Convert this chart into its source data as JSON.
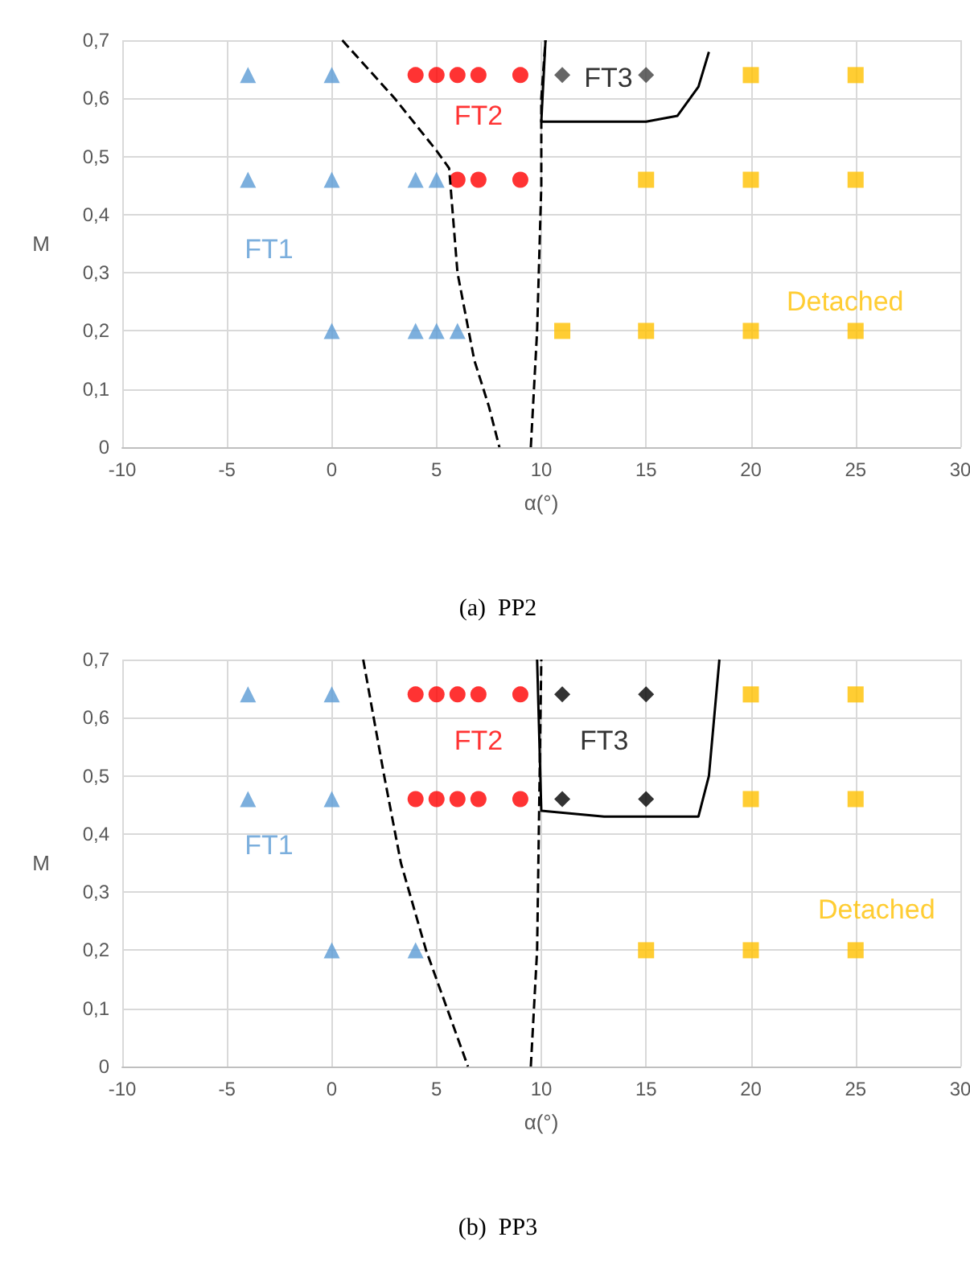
{
  "chart_data": [
    {
      "type": "scatter",
      "title": "(a)  PP2",
      "xlabel": "α(°)",
      "ylabel": "M",
      "xlim": [
        -10,
        30
      ],
      "xticks": [
        -10,
        -5,
        0,
        5,
        10,
        15,
        20,
        25,
        30
      ],
      "ylim": [
        0,
        0.7
      ],
      "yticks": [
        0,
        {
          "value": 0.1,
          "label": "0,1"
        },
        {
          "value": 0.2,
          "label": "0,2"
        },
        {
          "value": 0.3,
          "label": "0,3"
        },
        {
          "value": 0.4,
          "label": "0,4"
        },
        {
          "value": 0.5,
          "label": "0,5"
        },
        {
          "value": 0.6,
          "label": "0,6"
        },
        {
          "value": 0.7,
          "label": "0,7"
        }
      ],
      "grid": true,
      "legend": false,
      "series": [
        {
          "name": "FT1",
          "marker": "triangle",
          "color": "#5b9bd5",
          "x": [
            -4,
            0,
            -4,
            0,
            4,
            5,
            0,
            4,
            5,
            6
          ],
          "values": [
            0.64,
            0.64,
            0.46,
            0.46,
            0.46,
            0.46,
            0.2,
            0.2,
            0.2,
            0.2
          ]
        },
        {
          "name": "FT2",
          "marker": "circle",
          "color": "#ff0000",
          "x": [
            4,
            5,
            6,
            7,
            9,
            6,
            7,
            9
          ],
          "values": [
            0.64,
            0.64,
            0.64,
            0.64,
            0.64,
            0.46,
            0.46,
            0.46
          ]
        },
        {
          "name": "FT3",
          "marker": "diamond",
          "color": "#404040",
          "x": [
            11,
            15
          ],
          "values": [
            0.64,
            0.64
          ]
        },
        {
          "name": "Detached",
          "marker": "square",
          "color": "#ffc000",
          "x": [
            20,
            25,
            15,
            20,
            25,
            11,
            15,
            20,
            25
          ],
          "values": [
            0.64,
            0.64,
            0.46,
            0.46,
            0.46,
            0.2,
            0.2,
            0.2,
            0.2
          ]
        },
        {
          "type": "line",
          "marker": "none",
          "line_style": "dashed",
          "color": "#000000",
          "x": [
            0.5,
            3,
            5,
            5.6,
            6,
            6.8,
            7.5,
            8
          ],
          "values": [
            0.7,
            0.6,
            0.51,
            0.48,
            0.3,
            0.15,
            0.07,
            0
          ]
        },
        {
          "type": "line",
          "marker": "none",
          "line_style": "dashed",
          "color": "#000000",
          "x": [
            9.5,
            9.8,
            10,
            10,
            10.2
          ],
          "values": [
            0,
            0.2,
            0.45,
            0.6,
            0.7
          ]
        },
        {
          "type": "line",
          "marker": "none",
          "line_style": "solid",
          "color": "#000000",
          "x": [
            10.2,
            10,
            12,
            15,
            16.5,
            17.5,
            18
          ],
          "values": [
            0.7,
            0.56,
            0.56,
            0.56,
            0.57,
            0.62,
            0.68
          ]
        }
      ]
    },
    {
      "type": "scatter",
      "title": "(b)  PP3",
      "xlabel": "α(°)",
      "ylabel": "M",
      "xlim": [
        -10,
        30
      ],
      "xticks": [
        -10,
        -5,
        0,
        5,
        10,
        15,
        20,
        25,
        30
      ],
      "ylim": [
        0,
        0.7
      ],
      "yticks": [
        0,
        {
          "value": 0.1,
          "label": "0,1"
        },
        {
          "value": 0.2,
          "label": "0,2"
        },
        {
          "value": 0.3,
          "label": "0,3"
        },
        {
          "value": 0.4,
          "label": "0,4"
        },
        {
          "value": 0.5,
          "label": "0,5"
        },
        {
          "value": 0.6,
          "label": "0,6"
        },
        {
          "value": 0.7,
          "label": "0,7"
        }
      ],
      "grid": true,
      "legend": false,
      "series": [
        {
          "name": "FT1",
          "marker": "triangle",
          "color": "#5b9bd5",
          "x": [
            -4,
            0,
            -4,
            0,
            0,
            4
          ],
          "values": [
            0.64,
            0.64,
            0.46,
            0.46,
            0.2,
            0.2
          ]
        },
        {
          "name": "FT2",
          "marker": "circle",
          "color": "#ff0000",
          "x": [
            4,
            5,
            6,
            7,
            9,
            4,
            5,
            6,
            7,
            9
          ],
          "values": [
            0.64,
            0.64,
            0.64,
            0.64,
            0.64,
            0.46,
            0.46,
            0.46,
            0.46,
            0.46
          ]
        },
        {
          "name": "FT3",
          "marker": "diamond",
          "color": "#000000",
          "x": [
            11,
            15,
            11,
            15
          ],
          "values": [
            0.64,
            0.64,
            0.46,
            0.46
          ]
        },
        {
          "name": "Detached",
          "marker": "square",
          "color": "#ffc000",
          "x": [
            20,
            25,
            20,
            25,
            15,
            20,
            25
          ],
          "values": [
            0.64,
            0.64,
            0.46,
            0.46,
            0.2,
            0.2,
            0.2
          ]
        },
        {
          "type": "line",
          "marker": "none",
          "line_style": "dashed",
          "color": "#000000",
          "x": [
            1.5,
            2.5,
            3.3,
            4.5,
            5.5,
            6.5
          ],
          "values": [
            0.7,
            0.5,
            0.35,
            0.2,
            0.1,
            0
          ]
        },
        {
          "type": "line",
          "marker": "none",
          "line_style": "dashed",
          "color": "#000000",
          "x": [
            9.5,
            9.8,
            9.9,
            10
          ],
          "values": [
            0,
            0.2,
            0.45,
            0.7
          ]
        },
        {
          "type": "line",
          "marker": "none",
          "line_style": "solid",
          "color": "#000000",
          "x": [
            9.8,
            10,
            13,
            17.5,
            18,
            18.5
          ],
          "values": [
            0.7,
            0.44,
            0.43,
            0.43,
            0.5,
            0.7
          ]
        }
      ]
    }
  ]
}
